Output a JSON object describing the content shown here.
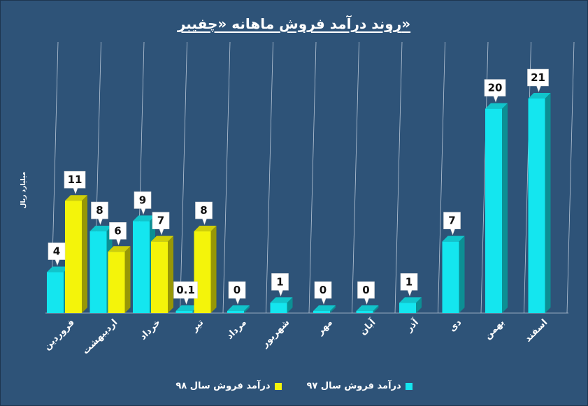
{
  "chart_data": {
    "type": "bar",
    "title": "روند درآمد فروش ماهانه «چفیبر»",
    "ylabel": "میلیارد ریال",
    "categories": [
      "فروردین",
      "اردیبهشت",
      "خرداد",
      "تیر",
      "مرداد",
      "شهریور",
      "مهر",
      "آبان",
      "آذر",
      "دی",
      "بهمن",
      "اسفند"
    ],
    "ylim": [
      0,
      25
    ],
    "grid": "vertical",
    "legend": "bottom",
    "series": [
      {
        "name": "درآمد فروش سال ۹۷",
        "color": "#14e6ef",
        "values": [
          4,
          8,
          9,
          0.1,
          0,
          1,
          0,
          0,
          1,
          7,
          20,
          21
        ],
        "labels": [
          "4",
          "8",
          "9",
          "0.1",
          "0",
          "1",
          "0",
          "0",
          "1",
          "7",
          "20",
          "21"
        ]
      },
      {
        "name": "درآمد فروش سال ۹۸",
        "color": "#f4f40a",
        "values": [
          11,
          6,
          7,
          8,
          null,
          null,
          null,
          null,
          null,
          null,
          null,
          null
        ],
        "labels": [
          "11",
          "6",
          "7",
          "8",
          "",
          "",
          "",
          "",
          "",
          "",
          "",
          ""
        ]
      }
    ]
  }
}
